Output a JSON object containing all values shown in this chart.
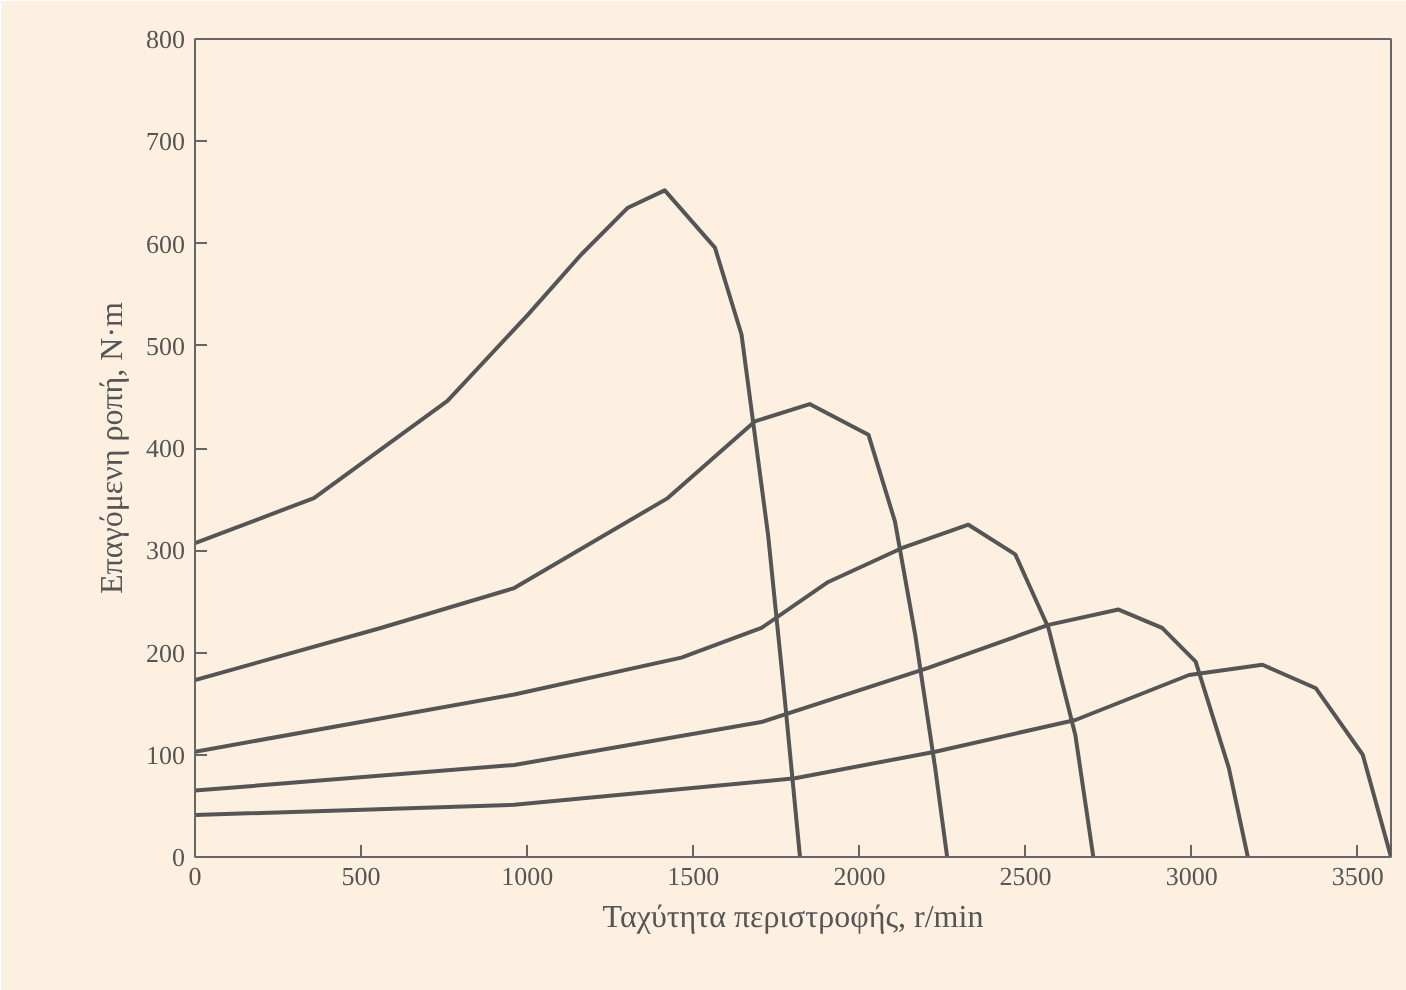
{
  "chart_data": {
    "type": "line",
    "xlabel": "Ταχύτητα περιστροφής, r/min",
    "ylabel": "Επαγόμενη ροπή, N·m",
    "xlim": [
      0,
      3600
    ],
    "ylim": [
      0,
      800
    ],
    "xticks": [
      0,
      500,
      1000,
      1500,
      2000,
      2500,
      3000,
      3500
    ],
    "yticks": [
      0,
      100,
      200,
      300,
      400,
      500,
      600,
      700,
      800
    ],
    "grid": false,
    "marker": "none",
    "line_style": "solid",
    "series": [
      {
        "color": "#555555",
        "x": [
          0,
          358,
          760,
          1001,
          1162,
          1303,
          1414,
          1565,
          1645,
          1725,
          1776,
          1821
        ],
        "values": [
          307,
          351,
          446,
          530,
          589,
          635,
          652,
          596,
          511,
          315,
          152,
          0
        ]
      },
      {
        "color": "#555555",
        "x": [
          0,
          559,
          961,
          1423,
          1685,
          1850,
          2027,
          2107,
          2168,
          2228,
          2264
        ],
        "values": [
          173,
          224,
          263,
          351,
          426,
          443,
          413,
          328,
          217,
          87,
          0
        ]
      },
      {
        "color": "#555555",
        "x": [
          0,
          961,
          1464,
          1705,
          1906,
          2127,
          2328,
          2469,
          2569,
          2650,
          2704
        ],
        "values": [
          103,
          159,
          195,
          224,
          269,
          302,
          325,
          296,
          224,
          119,
          0
        ]
      },
      {
        "color": "#555555",
        "x": [
          0,
          961,
          1705,
          2207,
          2569,
          2780,
          2911,
          3012,
          3112,
          3169
        ],
        "values": [
          65,
          90,
          132,
          185,
          227,
          242,
          224,
          191,
          87,
          0
        ]
      },
      {
        "color": "#555555",
        "x": [
          0,
          961,
          1806,
          2228,
          2650,
          2992,
          3213,
          3374,
          3515,
          3600
        ],
        "values": [
          41,
          51,
          77,
          103,
          134,
          178,
          188,
          165,
          100,
          0
        ]
      }
    ]
  }
}
